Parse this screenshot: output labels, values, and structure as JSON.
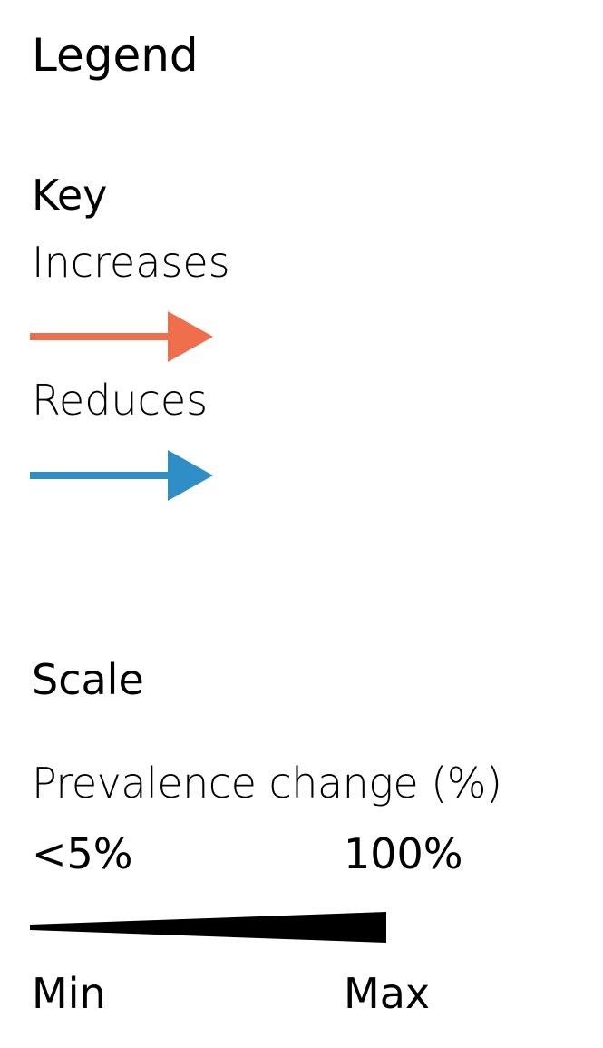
{
  "legend": {
    "title": "Legend"
  },
  "key": {
    "title": "Key",
    "items": [
      {
        "label": "Increases",
        "color": "#ef6e4b"
      },
      {
        "label": "Reduces",
        "color": "#2f8ec6"
      }
    ]
  },
  "scale": {
    "title": "Scale",
    "measure_label": "Prevalence change (%)",
    "min_value": "<5%",
    "max_value": "100%",
    "min_label": "Min",
    "max_label": "Max",
    "wedge_color": "#000000"
  }
}
